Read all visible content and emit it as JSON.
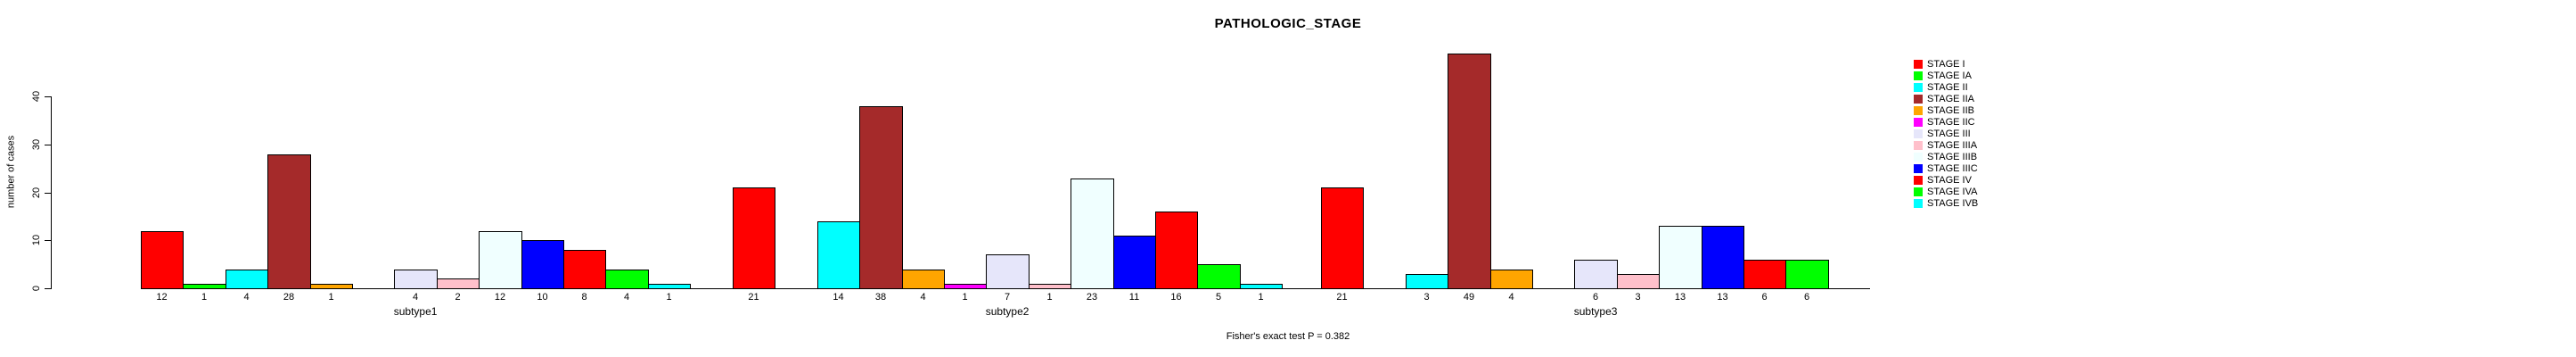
{
  "title": "PATHOLOGIC_STAGE",
  "footer": "Fisher's exact test P = 0.382",
  "y_axis": {
    "label": "number of cases",
    "ticks": [
      0,
      10,
      20,
      30,
      40
    ]
  },
  "chart_data": {
    "type": "bar",
    "title": "PATHOLOGIC_STAGE",
    "xlabel": "",
    "ylabel": "number of cases",
    "ylim": [
      0,
      49
    ],
    "grid": false,
    "legend_position": "right",
    "value_labels": "shown under each nonzero bar",
    "annotation": "Fisher's exact test P = 0.382",
    "categories": [
      "subtype1",
      "subtype2",
      "subtype3"
    ],
    "series": [
      {
        "name": "STAGE I",
        "color": "#FF0000",
        "values": [
          12,
          21,
          21
        ]
      },
      {
        "name": "STAGE IA",
        "color": "#00FF00",
        "values": [
          1,
          0,
          0
        ]
      },
      {
        "name": "STAGE II",
        "color": "#00FFFF",
        "values": [
          4,
          14,
          3
        ]
      },
      {
        "name": "STAGE IIA",
        "color": "#A52A2A",
        "values": [
          28,
          38,
          49
        ]
      },
      {
        "name": "STAGE IIB",
        "color": "#FFA500",
        "values": [
          1,
          4,
          4
        ]
      },
      {
        "name": "STAGE IIC",
        "color": "#FF00FF",
        "values": [
          0,
          1,
          0
        ]
      },
      {
        "name": "STAGE III",
        "color": "#E6E6FA",
        "values": [
          4,
          7,
          6
        ]
      },
      {
        "name": "STAGE IIIA",
        "color": "#FFC0CB",
        "values": [
          2,
          1,
          3
        ]
      },
      {
        "name": "STAGE IIIB",
        "color": "#F0FFFF",
        "values": [
          12,
          23,
          13
        ]
      },
      {
        "name": "STAGE IIIC",
        "color": "#0000FF",
        "values": [
          10,
          11,
          13
        ]
      },
      {
        "name": "STAGE IV",
        "color": "#FF0000",
        "values": [
          8,
          16,
          6
        ]
      },
      {
        "name": "STAGE IVA",
        "color": "#00FF00",
        "values": [
          4,
          5,
          6
        ]
      },
      {
        "name": "STAGE IVB",
        "color": "#00FFFF",
        "values": [
          1,
          1,
          0
        ]
      }
    ]
  }
}
